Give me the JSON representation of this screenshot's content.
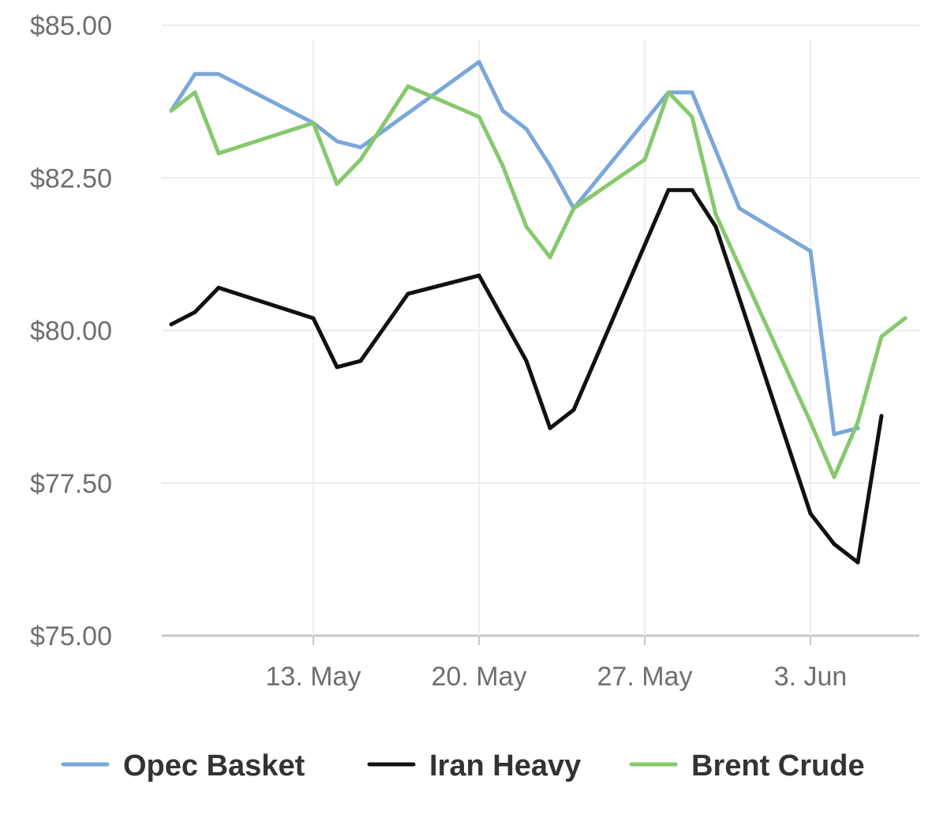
{
  "chart_data": {
    "type": "line",
    "ylim": [
      75,
      85
    ],
    "y_ticks": [
      {
        "value": 85,
        "label": "$85.00"
      },
      {
        "value": 82.5,
        "label": "$82.50"
      },
      {
        "value": 80,
        "label": "$80.00"
      },
      {
        "value": 77.5,
        "label": "$77.50"
      },
      {
        "value": 75,
        "label": "$75.00"
      }
    ],
    "x_ticks": [
      {
        "value": "2018-05-13",
        "label": "13. May"
      },
      {
        "value": "2018-05-20",
        "label": "20. May"
      },
      {
        "value": "2018-05-27",
        "label": "27. May"
      },
      {
        "value": "2018-06-03",
        "label": "3. Jun"
      }
    ],
    "xlim": [
      "2018-05-07",
      "2018-06-07"
    ],
    "grid": {
      "horizontal": true,
      "vertical": true
    },
    "legend": {
      "position": "bottom"
    },
    "series": [
      {
        "name": "Opec Basket",
        "color": "#7ba7d9",
        "points": [
          {
            "x": "2018-05-07",
            "y": 83.6
          },
          {
            "x": "2018-05-08",
            "y": 84.2
          },
          {
            "x": "2018-05-09",
            "y": 84.2
          },
          {
            "x": "2018-05-13",
            "y": 83.4
          },
          {
            "x": "2018-05-14",
            "y": 83.1
          },
          {
            "x": "2018-05-15",
            "y": 83.0
          },
          {
            "x": "2018-05-20",
            "y": 84.4
          },
          {
            "x": "2018-05-21",
            "y": 83.6
          },
          {
            "x": "2018-05-22",
            "y": 83.3
          },
          {
            "x": "2018-05-23",
            "y": 82.7
          },
          {
            "x": "2018-05-24",
            "y": 82.0
          },
          {
            "x": "2018-05-28",
            "y": 83.9
          },
          {
            "x": "2018-05-29",
            "y": 83.9
          },
          {
            "x": "2018-05-31",
            "y": 82.0
          },
          {
            "x": "2018-06-03",
            "y": 81.3
          },
          {
            "x": "2018-06-04",
            "y": 78.3
          },
          {
            "x": "2018-06-05",
            "y": 78.4
          }
        ]
      },
      {
        "name": "Iran Heavy",
        "color": "#111111",
        "points": [
          {
            "x": "2018-05-07",
            "y": 80.1
          },
          {
            "x": "2018-05-08",
            "y": 80.3
          },
          {
            "x": "2018-05-09",
            "y": 80.7
          },
          {
            "x": "2018-05-13",
            "y": 80.2
          },
          {
            "x": "2018-05-14",
            "y": 79.4
          },
          {
            "x": "2018-05-15",
            "y": 79.5
          },
          {
            "x": "2018-05-17",
            "y": 80.6
          },
          {
            "x": "2018-05-20",
            "y": 80.9
          },
          {
            "x": "2018-05-21",
            "y": 80.2
          },
          {
            "x": "2018-05-22",
            "y": 79.5
          },
          {
            "x": "2018-05-23",
            "y": 78.4
          },
          {
            "x": "2018-05-24",
            "y": 78.7
          },
          {
            "x": "2018-05-28",
            "y": 82.3
          },
          {
            "x": "2018-05-29",
            "y": 82.3
          },
          {
            "x": "2018-05-30",
            "y": 81.7
          },
          {
            "x": "2018-06-03",
            "y": 77.0
          },
          {
            "x": "2018-06-04",
            "y": 76.5
          },
          {
            "x": "2018-06-05",
            "y": 76.2
          },
          {
            "x": "2018-06-06",
            "y": 78.6
          }
        ]
      },
      {
        "name": "Brent Crude",
        "color": "#86c96c",
        "points": [
          {
            "x": "2018-05-07",
            "y": 83.6
          },
          {
            "x": "2018-05-08",
            "y": 83.9
          },
          {
            "x": "2018-05-09",
            "y": 82.9
          },
          {
            "x": "2018-05-13",
            "y": 83.4
          },
          {
            "x": "2018-05-14",
            "y": 82.4
          },
          {
            "x": "2018-05-15",
            "y": 82.8
          },
          {
            "x": "2018-05-17",
            "y": 84.0
          },
          {
            "x": "2018-05-20",
            "y": 83.5
          },
          {
            "x": "2018-05-21",
            "y": 82.7
          },
          {
            "x": "2018-05-22",
            "y": 81.7
          },
          {
            "x": "2018-05-23",
            "y": 81.2
          },
          {
            "x": "2018-05-24",
            "y": 82.0
          },
          {
            "x": "2018-05-27",
            "y": 82.8
          },
          {
            "x": "2018-05-28",
            "y": 83.9
          },
          {
            "x": "2018-05-29",
            "y": 83.5
          },
          {
            "x": "2018-05-30",
            "y": 81.9
          },
          {
            "x": "2018-06-03",
            "y": 78.5
          },
          {
            "x": "2018-06-04",
            "y": 77.6
          },
          {
            "x": "2018-06-05",
            "y": 78.5
          },
          {
            "x": "2018-06-06",
            "y": 79.9
          },
          {
            "x": "2018-06-07",
            "y": 80.2
          }
        ]
      }
    ]
  }
}
